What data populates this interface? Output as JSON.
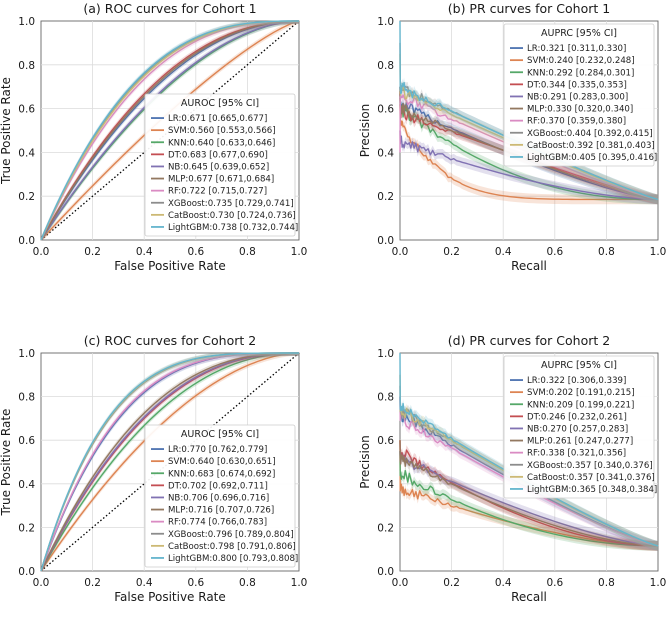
{
  "colors": {
    "LR": "#4c72b0",
    "SVM": "#dd8452",
    "KNN": "#55a868",
    "DT": "#c44e52",
    "NB": "#8172b3",
    "MLP": "#937860",
    "RF": "#da8bc3",
    "XGBoost": "#8c8c8c",
    "CatBoost": "#ccb974",
    "LightGBM": "#64b5cd",
    "chance": "#000000"
  },
  "chart_data": [
    {
      "id": "roc1",
      "type": "line",
      "kind": "roc",
      "title": "(a) ROC curves for Cohort 1",
      "xlabel": "False Positive Rate",
      "ylabel": "True Positive Rate",
      "xlim": [
        0,
        1
      ],
      "ylim": [
        0,
        1
      ],
      "xticks": [
        "0.0",
        "0.2",
        "0.4",
        "0.6",
        "0.8",
        "1.0"
      ],
      "yticks": [
        "0.0",
        "0.2",
        "0.4",
        "0.6",
        "0.8",
        "1.0"
      ],
      "grid": true,
      "chance_line": true,
      "legend_title": "AUROC [95% CI]",
      "legend_position": "lower-right",
      "series": [
        {
          "name": "LR",
          "label": "LR:0.671 [0.665,0.677]",
          "auc": 0.671
        },
        {
          "name": "SVM",
          "label": "SVM:0.560 [0.553,0.566]",
          "auc": 0.56
        },
        {
          "name": "KNN",
          "label": "KNN:0.640 [0.633,0.646]",
          "auc": 0.64
        },
        {
          "name": "DT",
          "label": "DT:0.683 [0.677,0.690]",
          "auc": 0.683
        },
        {
          "name": "NB",
          "label": "NB:0.645 [0.639,0.652]",
          "auc": 0.645
        },
        {
          "name": "MLP",
          "label": "MLP:0.677 [0.671,0.684]",
          "auc": 0.677
        },
        {
          "name": "RF",
          "label": "RF:0.722 [0.715,0.727]",
          "auc": 0.722
        },
        {
          "name": "XGBoost",
          "label": "XGBoost:0.735 [0.729,0.741]",
          "auc": 0.735
        },
        {
          "name": "CatBoost",
          "label": "CatBoost:0.730 [0.724,0.736]",
          "auc": 0.73
        },
        {
          "name": "LightGBM",
          "label": "LightGBM:0.738 [0.732,0.744]",
          "auc": 0.738
        }
      ]
    },
    {
      "id": "pr1",
      "type": "line",
      "kind": "pr",
      "title": "(b) PR curves for Cohort 1",
      "xlabel": "Recall",
      "ylabel": "Precision",
      "xlim": [
        0,
        1
      ],
      "ylim": [
        0,
        1
      ],
      "xticks": [
        "0.0",
        "0.2",
        "0.4",
        "0.6",
        "0.8",
        "1.0"
      ],
      "yticks": [
        "0.0",
        "0.2",
        "0.4",
        "0.6",
        "0.8",
        "1.0"
      ],
      "grid": true,
      "baseline": 0.185,
      "legend_title": "AUPRC [95% CI]",
      "legend_position": "upper-right",
      "series": [
        {
          "name": "LR",
          "label": "LR:0.321 [0.311,0.330]",
          "start": 0.62,
          "q": 1.3,
          "spike": 0.7
        },
        {
          "name": "SVM",
          "label": "SVM:0.240 [0.232,0.248]",
          "start": 0.55,
          "q": 6.0,
          "spike": 0.62
        },
        {
          "name": "KNN",
          "label": "KNN:0.292 [0.284,0.301]",
          "start": 0.6,
          "q": 2.2,
          "spike": 0.65
        },
        {
          "name": "DT",
          "label": "DT:0.344 [0.335,0.353]",
          "start": 0.58,
          "q": 1.1,
          "spike": 0.68
        },
        {
          "name": "NB",
          "label": "NB:0.291 [0.283,0.300]",
          "start": 0.45,
          "q": 1.6,
          "spike": 0.5
        },
        {
          "name": "MLP",
          "label": "MLP:0.330 [0.320,0.340]",
          "start": 0.6,
          "q": 1.2,
          "spike": 0.7
        },
        {
          "name": "RF",
          "label": "RF:0.370 [0.359,0.380]",
          "start": 0.66,
          "q": 1.15,
          "spike": 0.4
        },
        {
          "name": "XGBoost",
          "label": "XGBoost:0.404 [0.392,0.415]",
          "start": 0.7,
          "q": 1.1,
          "spike": 0.9
        },
        {
          "name": "CatBoost",
          "label": "CatBoost:0.392 [0.381,0.403]",
          "start": 0.68,
          "q": 1.1,
          "spike": 0.85
        },
        {
          "name": "LightGBM",
          "label": "LightGBM:0.405 [0.395,0.416]",
          "start": 0.7,
          "q": 1.1,
          "spike": 1.0
        }
      ]
    },
    {
      "id": "roc2",
      "type": "line",
      "kind": "roc",
      "title": "(c) ROC curves for Cohort 2",
      "xlabel": "False Positive Rate",
      "ylabel": "True Positive Rate",
      "xlim": [
        0,
        1
      ],
      "ylim": [
        0,
        1
      ],
      "xticks": [
        "0.0",
        "0.2",
        "0.4",
        "0.6",
        "0.8",
        "1.0"
      ],
      "yticks": [
        "0.0",
        "0.2",
        "0.4",
        "0.6",
        "0.8",
        "1.0"
      ],
      "grid": true,
      "chance_line": true,
      "legend_title": "AUROC [95% CI]",
      "legend_position": "lower-right",
      "series": [
        {
          "name": "LR",
          "label": "LR:0.770 [0.762,0.779]",
          "auc": 0.77
        },
        {
          "name": "SVM",
          "label": "SVM:0.640 [0.630,0.651]",
          "auc": 0.64
        },
        {
          "name": "KNN",
          "label": "KNN:0.683 [0.674,0.692]",
          "auc": 0.683
        },
        {
          "name": "DT",
          "label": "DT:0.702 [0.692,0.711]",
          "auc": 0.702
        },
        {
          "name": "NB",
          "label": "NB:0.706 [0.696,0.716]",
          "auc": 0.706
        },
        {
          "name": "MLP",
          "label": "MLP:0.716 [0.707,0.726]",
          "auc": 0.716
        },
        {
          "name": "RF",
          "label": "RF:0.774 [0.766,0.783]",
          "auc": 0.774
        },
        {
          "name": "XGBoost",
          "label": "XGBoost:0.796 [0.789,0.804]",
          "auc": 0.796
        },
        {
          "name": "CatBoost",
          "label": "CatBoost:0.798 [0.791,0.806]",
          "auc": 0.798
        },
        {
          "name": "LightGBM",
          "label": "LightGBM:0.800 [0.793,0.808]",
          "auc": 0.8
        }
      ]
    },
    {
      "id": "pr2",
      "type": "line",
      "kind": "pr",
      "title": "(d) PR curves for Cohort 2",
      "xlabel": "Recall",
      "ylabel": "Precision",
      "xlim": [
        0,
        1
      ],
      "ylim": [
        0,
        1
      ],
      "xticks": [
        "0.0",
        "0.2",
        "0.4",
        "0.6",
        "0.8",
        "1.0"
      ],
      "yticks": [
        "0.0",
        "0.2",
        "0.4",
        "0.6",
        "0.8",
        "1.0"
      ],
      "grid": true,
      "baseline": 0.115,
      "legend_title": "AUPRC [95% CI]",
      "legend_position": "upper-right",
      "series": [
        {
          "name": "LR",
          "label": "LR:0.322 [0.306,0.339]",
          "start": 0.72,
          "q": 1.2,
          "spike": 0.8
        },
        {
          "name": "SVM",
          "label": "SVM:0.202 [0.191,0.215]",
          "start": 0.38,
          "q": 1.6,
          "spike": 0.6
        },
        {
          "name": "KNN",
          "label": "KNN:0.209 [0.199,0.221]",
          "start": 0.45,
          "q": 2.0,
          "spike": 0.55
        },
        {
          "name": "DT",
          "label": "DT:0.246 [0.232,0.261]",
          "start": 0.55,
          "q": 1.8,
          "spike": 0.6
        },
        {
          "name": "NB",
          "label": "NB:0.270 [0.257,0.283]",
          "start": 0.52,
          "q": 1.4,
          "spike": 0.55
        },
        {
          "name": "MLP",
          "label": "MLP:0.261 [0.247,0.277]",
          "start": 0.52,
          "q": 1.6,
          "spike": 0.6
        },
        {
          "name": "RF",
          "label": "RF:0.338 [0.321,0.356]",
          "start": 0.7,
          "q": 1.2,
          "spike": 0.8
        },
        {
          "name": "XGBoost",
          "label": "XGBoost:0.357 [0.340,0.376]",
          "start": 0.74,
          "q": 1.15,
          "spike": 0.85
        },
        {
          "name": "CatBoost",
          "label": "CatBoost:0.357 [0.341,0.376]",
          "start": 0.74,
          "q": 1.15,
          "spike": 0.9
        },
        {
          "name": "LightGBM",
          "label": "LightGBM:0.365 [0.348,0.384]",
          "start": 0.75,
          "q": 1.15,
          "spike": 1.0
        }
      ]
    }
  ]
}
